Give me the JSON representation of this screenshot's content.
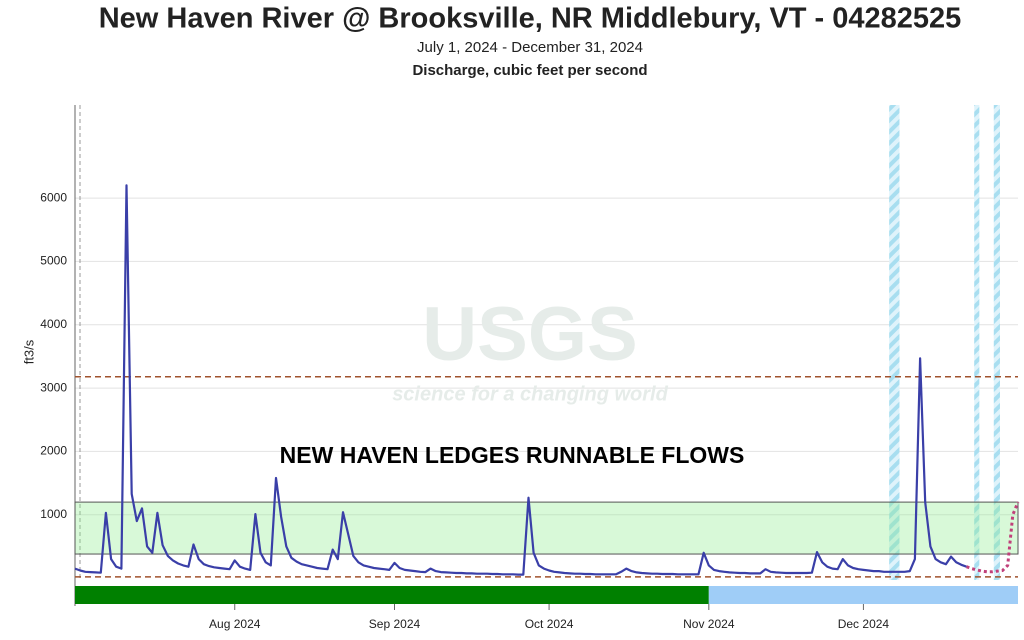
{
  "chart_data": {
    "type": "line",
    "title": "New Haven River @ Brooksville, NR Middlebury, VT - 04282525",
    "subtitle": "July 1, 2024 - December 31, 2024",
    "subtitle2": "Discharge, cubic feet per second",
    "y_label": "ft3/s",
    "annotation": "NEW HAVEN LEDGES RUNNABLE FLOWS",
    "watermark": "USGS",
    "watermark_tagline": "science for a changing world",
    "runnable_range": [
      380,
      1200
    ],
    "reference_lines": [
      3180,
      20
    ],
    "ylim": [
      -30,
      7470
    ],
    "yticks": [
      1000,
      2000,
      3000,
      4000,
      5000,
      6000
    ],
    "grid": true,
    "categories": [
      null,
      null,
      null,
      null,
      null,
      null,
      null,
      null,
      null,
      null,
      null,
      null,
      null,
      null,
      null,
      null,
      null,
      null,
      null,
      null,
      null,
      null,
      null,
      null,
      null,
      null,
      null,
      null,
      null,
      null,
      null,
      "Aug 2024",
      null,
      null,
      null,
      null,
      null,
      null,
      null,
      null,
      null,
      null,
      null,
      null,
      null,
      null,
      null,
      null,
      null,
      null,
      null,
      null,
      null,
      null,
      null,
      null,
      null,
      null,
      null,
      null,
      null,
      null,
      "Sep 2024",
      null,
      null,
      null,
      null,
      null,
      null,
      null,
      null,
      null,
      null,
      null,
      null,
      null,
      null,
      null,
      null,
      null,
      null,
      null,
      null,
      null,
      null,
      null,
      null,
      null,
      null,
      null,
      null,
      null,
      "Oct 2024",
      null,
      null,
      null,
      null,
      null,
      null,
      null,
      null,
      null,
      null,
      null,
      null,
      null,
      null,
      null,
      null,
      null,
      null,
      null,
      null,
      null,
      null,
      null,
      null,
      null,
      null,
      null,
      null,
      null,
      null,
      "Nov 2024",
      null,
      null,
      null,
      null,
      null,
      null,
      null,
      null,
      null,
      null,
      null,
      null,
      null,
      null,
      null,
      null,
      null,
      null,
      null,
      null,
      null,
      null,
      null,
      null,
      null,
      null,
      null,
      null,
      null,
      "Dec 2024",
      null,
      null,
      null,
      null,
      null,
      null,
      null,
      null,
      null,
      null,
      null,
      null,
      null,
      null,
      null,
      null,
      null,
      null,
      null,
      null,
      null,
      null,
      null,
      null,
      null,
      null,
      null,
      null,
      null,
      null
    ],
    "series": [
      {
        "color": "#3a3fa8",
        "values": [
          150,
          120,
          100,
          95,
          90,
          85,
          1030,
          300,
          180,
          150,
          6200,
          1330,
          900,
          1100,
          500,
          400,
          1030,
          520,
          350,
          280,
          230,
          200,
          180,
          530,
          300,
          220,
          190,
          170,
          160,
          150,
          140,
          280,
          180,
          150,
          130,
          1010,
          400,
          250,
          200,
          1580,
          970,
          500,
          320,
          260,
          220,
          200,
          180,
          160,
          150,
          140,
          450,
          300,
          1040,
          700,
          350,
          250,
          200,
          180,
          160,
          150,
          140,
          130,
          240,
          160,
          130,
          120,
          110,
          100,
          95,
          150,
          110,
          95,
          90,
          85,
          80,
          80,
          75,
          75,
          70,
          70,
          70,
          65,
          65,
          60,
          60,
          60,
          55,
          55,
          1270,
          400,
          200,
          150,
          120,
          100,
          90,
          80,
          75,
          70,
          70,
          65,
          65,
          60,
          60,
          60,
          60,
          60,
          100,
          150,
          110,
          90,
          80,
          75,
          70,
          70,
          65,
          65,
          65,
          60,
          60,
          60,
          60,
          60,
          400,
          200,
          130,
          110,
          100,
          90,
          85,
          80,
          80,
          75,
          75,
          75,
          140,
          100,
          90,
          85,
          80,
          80,
          80,
          80,
          80,
          85,
          410,
          250,
          180,
          150,
          140,
          300,
          200,
          160,
          140,
          130,
          120,
          110,
          110,
          100,
          100,
          100,
          100,
          100,
          110,
          300,
          3470,
          1200,
          500,
          300,
          250,
          220,
          340,
          250,
          210,
          180,
          null,
          null,
          null,
          null,
          null,
          null,
          null,
          null,
          null,
          null
        ]
      },
      {
        "color": "#c0407a",
        "values": [
          null,
          null,
          null,
          null,
          null,
          null,
          null,
          null,
          null,
          null,
          null,
          null,
          null,
          null,
          null,
          null,
          null,
          null,
          null,
          null,
          null,
          null,
          null,
          null,
          null,
          null,
          null,
          null,
          null,
          null,
          null,
          null,
          null,
          null,
          null,
          null,
          null,
          null,
          null,
          null,
          null,
          null,
          null,
          null,
          null,
          null,
          null,
          null,
          null,
          null,
          null,
          null,
          null,
          null,
          null,
          null,
          null,
          null,
          null,
          null,
          null,
          null,
          null,
          null,
          null,
          null,
          null,
          null,
          null,
          null,
          null,
          null,
          null,
          null,
          null,
          null,
          null,
          null,
          null,
          null,
          null,
          null,
          null,
          null,
          null,
          null,
          null,
          null,
          null,
          null,
          null,
          null,
          null,
          null,
          null,
          null,
          null,
          null,
          null,
          null,
          null,
          null,
          null,
          null,
          null,
          null,
          null,
          null,
          null,
          null,
          null,
          null,
          null,
          null,
          null,
          null,
          null,
          null,
          null,
          null,
          null,
          null,
          null,
          null,
          null,
          null,
          null,
          null,
          null,
          null,
          null,
          null,
          null,
          null,
          null,
          null,
          null,
          null,
          null,
          null,
          null,
          null,
          null,
          null,
          null,
          null,
          null,
          null,
          null,
          null,
          null,
          null,
          null,
          null,
          null,
          null,
          null,
          null,
          null,
          null,
          null,
          null,
          null,
          null,
          null,
          null,
          null,
          null,
          null,
          null,
          null,
          null,
          null,
          180,
          150,
          130,
          110,
          100,
          100,
          110,
          120,
          200,
          1000,
          1200
        ]
      }
    ]
  }
}
